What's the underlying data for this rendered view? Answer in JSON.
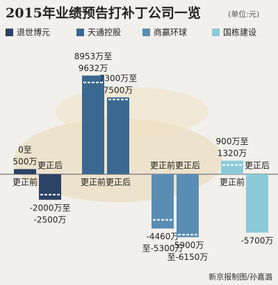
{
  "chart_data": {
    "type": "range-bar",
    "title": "2015年业绩预告打补丁公司一览",
    "unit": "(单位:元)",
    "categories": [
      "更正前",
      "更正后"
    ],
    "series": [
      {
        "name": "退世博元",
        "color": "#2c4266",
        "values": [
          [
            0,
            500
          ],
          [
            -2000,
            -2500
          ]
        ],
        "value_labels": [
          [
            "0至",
            "500万"
          ],
          [
            "-2000万至",
            "-2500万"
          ]
        ]
      },
      {
        "name": "天通控股",
        "color": "#3b6890",
        "values": [
          [
            8953,
            9632
          ],
          [
            7300,
            7500
          ]
        ],
        "value_labels": [
          [
            "8953万至",
            "9632万"
          ],
          [
            "7300万至",
            "7500万"
          ]
        ]
      },
      {
        "name": "商赢环球",
        "color": "#5a8db4",
        "values": [
          [
            -4460,
            -5300
          ],
          [
            -5900,
            -6150
          ]
        ],
        "value_labels": [
          [
            "-4460万",
            "至-5300万"
          ],
          [
            "-5900万",
            "至-6150万"
          ]
        ]
      },
      {
        "name": "国栋建设",
        "color": "#8ccad9",
        "values": [
          [
            900,
            1320
          ],
          [
            -5700
          ]
        ],
        "value_labels": [
          [
            "900万至",
            "1320万"
          ],
          [
            "-5700万"
          ]
        ]
      }
    ],
    "credit": "新京报制图/孙嘉潞"
  }
}
